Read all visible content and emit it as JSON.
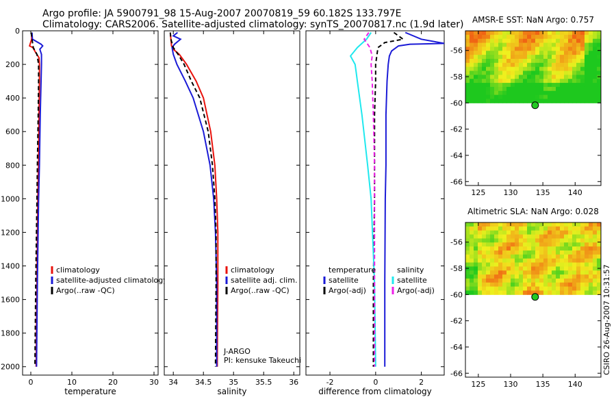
{
  "header": {
    "line1": "Argo profile: JA 5900791_98 15-Aug-2007 20070819_59 60.182S 133.797E",
    "line2": "Climatology: CARS2006. Satellite-adjusted climatology: synTS_20070817.nc (1.9d later)"
  },
  "side_stamp": "CSIRO 26-Aug-2007 10:31:57",
  "colors": {
    "red": "#e8120c",
    "blue": "#1a1ad6",
    "black": "#000000",
    "cyan": "#1ee8ee",
    "magenta": "#ee1ee8"
  },
  "chart_data": [
    {
      "type": "line",
      "panel": "temperature",
      "xlabel": "temperature",
      "xlim": [
        -2,
        31
      ],
      "ylim": [
        2050,
        0
      ],
      "xticks": [
        0,
        10,
        20,
        30
      ],
      "yticks": [
        0,
        200,
        400,
        600,
        800,
        1000,
        1200,
        1400,
        1600,
        1800,
        2000
      ],
      "legend": {
        "placement": "lower-right",
        "entries": [
          "climatology",
          "satellite-adjusted climatology",
          "Argo(..raw -QC)"
        ]
      },
      "series": [
        {
          "name": "climatology",
          "color": "red",
          "style": "solid",
          "depth": [
            10,
            50,
            90,
            100,
            130,
            160,
            200,
            300,
            500,
            800,
            1000,
            1500,
            2000
          ],
          "values": [
            0.2,
            0.2,
            -0.3,
            0.5,
            1.2,
            2.0,
            2.1,
            2.1,
            2.0,
            1.9,
            1.7,
            1.5,
            1.3
          ]
        },
        {
          "name": "satellite-adjusted climatology",
          "color": "blue",
          "style": "solid",
          "depth": [
            10,
            50,
            80,
            90,
            110,
            140,
            200,
            300,
            500,
            800,
            1000,
            1500,
            2000
          ],
          "values": [
            0.3,
            0.4,
            2.5,
            2.9,
            2.2,
            2.6,
            2.6,
            2.5,
            2.3,
            2.1,
            1.9,
            1.6,
            1.4
          ]
        },
        {
          "name": "Argo(..raw -QC)",
          "color": "black",
          "style": "dashed",
          "depth": [
            10,
            50,
            100,
            140,
            200,
            300,
            500,
            800,
            1000,
            1500,
            2000
          ],
          "values": [
            0.1,
            0.3,
            0.6,
            1.5,
            1.9,
            1.9,
            1.8,
            1.6,
            1.5,
            1.2,
            1.0
          ]
        }
      ]
    },
    {
      "type": "line",
      "panel": "salinity",
      "xlabel": "salinity",
      "xlim": [
        33.85,
        36.1
      ],
      "ylim": [
        2050,
        0
      ],
      "xticks": [
        34,
        34.5,
        35,
        35.5,
        36
      ],
      "yticks": [
        0,
        200,
        400,
        600,
        800,
        1000,
        1200,
        1400,
        1600,
        1800,
        2000
      ],
      "legend": {
        "placement": "lower-right",
        "entries": [
          "climatology",
          "satellite adj. clim.",
          "Argo(..raw -QC)"
        ]
      },
      "annotations": [
        "J-ARGO",
        "PI: kensuke Takeuchi"
      ],
      "series": [
        {
          "name": "climatology",
          "color": "red",
          "style": "solid",
          "depth": [
            10,
            50,
            90,
            110,
            140,
            200,
            300,
            400,
            600,
            800,
            1000,
            1200,
            1500,
            2000
          ],
          "values": [
            33.95,
            33.96,
            33.97,
            34.0,
            34.1,
            34.22,
            34.38,
            34.5,
            34.62,
            34.69,
            34.72,
            34.74,
            34.74,
            34.73
          ]
        },
        {
          "name": "satellite adj. clim.",
          "color": "blue",
          "style": "solid",
          "depth": [
            10,
            30,
            50,
            80,
            100,
            140,
            200,
            300,
            400,
            600,
            800,
            1000,
            1200,
            1500,
            2000
          ],
          "values": [
            34.07,
            34.0,
            34.12,
            34.02,
            33.98,
            34.0,
            34.06,
            34.2,
            34.33,
            34.5,
            34.61,
            34.67,
            34.7,
            34.72,
            34.72
          ]
        },
        {
          "name": "Argo(..raw -QC)",
          "color": "black",
          "style": "dashed",
          "depth": [
            10,
            50,
            100,
            140,
            200,
            300,
            400,
            600,
            800,
            1000,
            1200,
            1500,
            2000
          ],
          "values": [
            33.95,
            33.96,
            34.0,
            34.08,
            34.18,
            34.3,
            34.44,
            34.58,
            34.65,
            34.69,
            34.71,
            34.71,
            34.7
          ]
        }
      ]
    },
    {
      "type": "line",
      "panel": "difference",
      "xlabel": "difference from climatology",
      "xlim": [
        -3.05,
        3
      ],
      "ylim": [
        2050,
        0
      ],
      "xticks": [
        -2,
        0,
        2
      ],
      "yticks": [
        0,
        200,
        400,
        600,
        800,
        1000,
        1200,
        1400,
        1600,
        1800,
        2000
      ],
      "legend": {
        "placement": "lower",
        "columns": [
          {
            "heading": "temperature",
            "entries": [
              "satellite",
              "Argo(-adj)"
            ]
          },
          {
            "heading": "salinity",
            "entries": [
              "satellite",
              "Argo(-adj)"
            ]
          }
        ]
      },
      "series": [
        {
          "name": "temperature satellite",
          "color": "blue",
          "style": "solid",
          "depth": [
            10,
            50,
            75,
            80,
            90,
            120,
            150,
            200,
            300,
            500,
            800,
            1000,
            1500,
            2000
          ],
          "values": [
            1.3,
            2.0,
            3.0,
            1.5,
            1.0,
            0.7,
            0.6,
            0.55,
            0.5,
            0.45,
            0.45,
            0.42,
            0.4,
            0.4
          ]
        },
        {
          "name": "temperature Argo(-adj)",
          "color": "black",
          "style": "dashed",
          "depth": [
            10,
            50,
            70,
            100,
            150,
            200,
            300,
            500,
            800,
            1000,
            1500,
            2000
          ],
          "values": [
            0.8,
            1.2,
            0.4,
            0.1,
            0.05,
            0.0,
            0.0,
            -0.05,
            -0.05,
            -0.05,
            -0.1,
            -0.1
          ]
        },
        {
          "name": "salinity satellite",
          "color": "cyan",
          "style": "solid",
          "depth": [
            10,
            50,
            100,
            150,
            200,
            250,
            300,
            500,
            800,
            1000,
            1500,
            2000
          ],
          "values": [
            -0.2,
            -0.4,
            -0.8,
            -1.1,
            -0.9,
            -0.85,
            -0.8,
            -0.6,
            -0.35,
            -0.2,
            -0.05,
            0.0
          ]
        },
        {
          "name": "salinity Argo(-adj)",
          "color": "magenta",
          "style": "dashed",
          "depth": [
            10,
            50,
            100,
            150,
            200,
            300,
            500,
            800,
            1000,
            1500,
            2000
          ],
          "values": [
            -0.3,
            -0.5,
            -0.25,
            -0.15,
            -0.2,
            -0.15,
            -0.1,
            -0.05,
            -0.05,
            -0.05,
            -0.05
          ]
        }
      ]
    },
    {
      "type": "heatmap",
      "panel": "sst",
      "title": "AMSR-E SST: NaN Argo: 0.757",
      "xlim": [
        123,
        144
      ],
      "ylim": [
        -66.3,
        -54.5
      ],
      "xticks": [
        125,
        130,
        135,
        140
      ],
      "yticks": [
        -56,
        -58,
        -60,
        -62,
        -64,
        -66
      ],
      "data_lat_range": [
        -60,
        -54.5
      ],
      "marker": {
        "lon": 133.8,
        "lat": -60.18,
        "color": "#22c822"
      }
    },
    {
      "type": "heatmap",
      "panel": "sla",
      "title": "Altimetric SLA: NaN Argo: 0.028",
      "xlim": [
        123,
        144
      ],
      "ylim": [
        -66.3,
        -54.5
      ],
      "xticks": [
        125,
        130,
        135,
        140
      ],
      "yticks": [
        -56,
        -58,
        -60,
        -62,
        -64,
        -66
      ],
      "data_lat_range": [
        -60,
        -54.5
      ],
      "marker": {
        "lon": 133.8,
        "lat": -60.18,
        "color": "#22c822"
      }
    }
  ]
}
